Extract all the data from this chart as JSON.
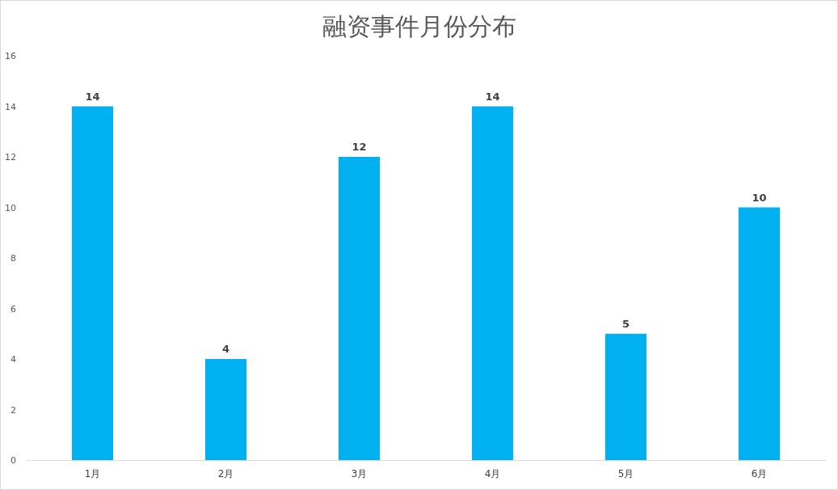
{
  "chart_data": {
    "type": "bar",
    "title": "融资事件月份分布",
    "categories": [
      "1月",
      "2月",
      "3月",
      "4月",
      "5月",
      "6月"
    ],
    "values": [
      14,
      4,
      12,
      14,
      5,
      10
    ],
    "color": "#00b0f0",
    "ylim": [
      0,
      16
    ],
    "yticks": [
      0,
      2,
      4,
      6,
      8,
      10,
      12,
      14,
      16
    ],
    "grid": false,
    "data_labels": true
  }
}
